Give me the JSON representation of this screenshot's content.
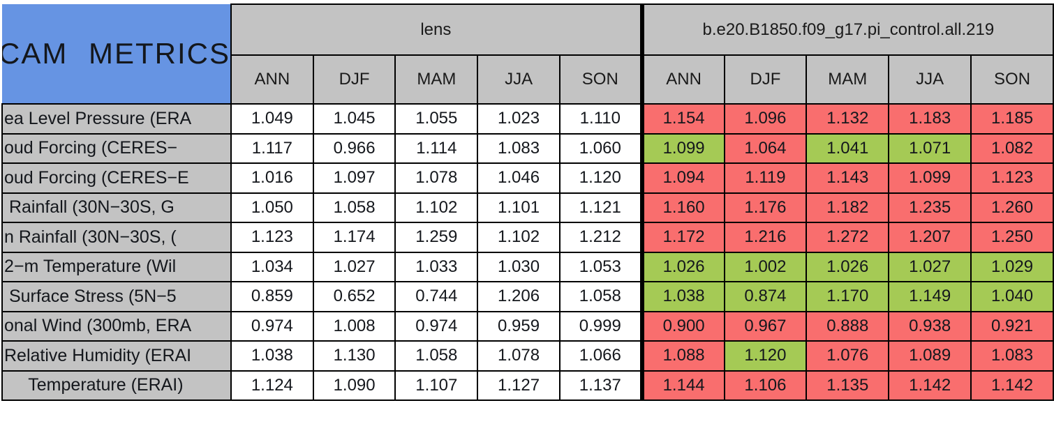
{
  "title": "CAM METRICS",
  "colors": {
    "blue": "#6694E3",
    "gray": "#C3C3C3",
    "red": "#F96E6E",
    "green": "#A5CA55"
  },
  "groups": [
    {
      "label": "lens",
      "seasons": [
        "ANN",
        "DJF",
        "MAM",
        "JJA",
        "SON"
      ]
    },
    {
      "label": "b.e20.B1850.f09_g17.pi_control.all.219",
      "seasons": [
        "ANN",
        "DJF",
        "MAM",
        "JJA",
        "SON"
      ]
    }
  ],
  "rows": [
    {
      "label": "ea Level Pressure (ERA",
      "lens": [
        "1.049",
        "1.045",
        "1.055",
        "1.023",
        "1.110"
      ],
      "control": [
        "1.154",
        "1.096",
        "1.132",
        "1.183",
        "1.185"
      ],
      "control_colors": [
        "red",
        "red",
        "red",
        "red",
        "red"
      ]
    },
    {
      "label": "oud Forcing (CERES−",
      "lens": [
        "1.117",
        "0.966",
        "1.114",
        "1.083",
        "1.060"
      ],
      "control": [
        "1.099",
        "1.064",
        "1.041",
        "1.071",
        "1.082"
      ],
      "control_colors": [
        "green",
        "red",
        "green",
        "green",
        "red"
      ]
    },
    {
      "label": "oud Forcing (CERES−E",
      "lens": [
        "1.016",
        "1.097",
        "1.078",
        "1.046",
        "1.120"
      ],
      "control": [
        "1.094",
        "1.119",
        "1.143",
        "1.099",
        "1.123"
      ],
      "control_colors": [
        "red",
        "red",
        "red",
        "red",
        "red"
      ]
    },
    {
      "label": " Rainfall (30N−30S, G",
      "lens": [
        "1.050",
        "1.058",
        "1.102",
        "1.101",
        "1.121"
      ],
      "control": [
        "1.160",
        "1.176",
        "1.182",
        "1.235",
        "1.260"
      ],
      "control_colors": [
        "red",
        "red",
        "red",
        "red",
        "red"
      ]
    },
    {
      "label": "n Rainfall (30N−30S, (",
      "lens": [
        "1.123",
        "1.174",
        "1.259",
        "1.102",
        "1.212"
      ],
      "control": [
        "1.172",
        "1.216",
        "1.272",
        "1.207",
        "1.250"
      ],
      "control_colors": [
        "red",
        "red",
        "red",
        "red",
        "red"
      ]
    },
    {
      "label": "2−m Temperature (Wil",
      "lens": [
        "1.034",
        "1.027",
        "1.033",
        "1.030",
        "1.053"
      ],
      "control": [
        "1.026",
        "1.002",
        "1.026",
        "1.027",
        "1.029"
      ],
      "control_colors": [
        "green",
        "green",
        "green",
        "green",
        "green"
      ]
    },
    {
      "label": " Surface Stress (5N−5",
      "lens": [
        "0.859",
        "0.652",
        "0.744",
        "1.206",
        "1.058"
      ],
      "control": [
        "1.038",
        "0.874",
        "1.170",
        "1.149",
        "1.040"
      ],
      "control_colors": [
        "green",
        "green",
        "green",
        "green",
        "green"
      ]
    },
    {
      "label": "onal Wind (300mb, ERA",
      "lens": [
        "0.974",
        "1.008",
        "0.974",
        "0.959",
        "0.999"
      ],
      "control": [
        "0.900",
        "0.967",
        "0.888",
        "0.938",
        "0.921"
      ],
      "control_colors": [
        "red",
        "red",
        "red",
        "red",
        "red"
      ]
    },
    {
      "label": "Relative Humidity (ERAI",
      "lens": [
        "1.038",
        "1.130",
        "1.058",
        "1.078",
        "1.066"
      ],
      "control": [
        "1.088",
        "1.120",
        "1.076",
        "1.089",
        "1.083"
      ],
      "control_colors": [
        "red",
        "green",
        "red",
        "red",
        "red"
      ]
    },
    {
      "label": "     Temperature (ERAI)",
      "lens": [
        "1.124",
        "1.090",
        "1.107",
        "1.127",
        "1.137"
      ],
      "control": [
        "1.144",
        "1.106",
        "1.135",
        "1.142",
        "1.142"
      ],
      "control_colors": [
        "red",
        "red",
        "red",
        "red",
        "red"
      ]
    }
  ]
}
